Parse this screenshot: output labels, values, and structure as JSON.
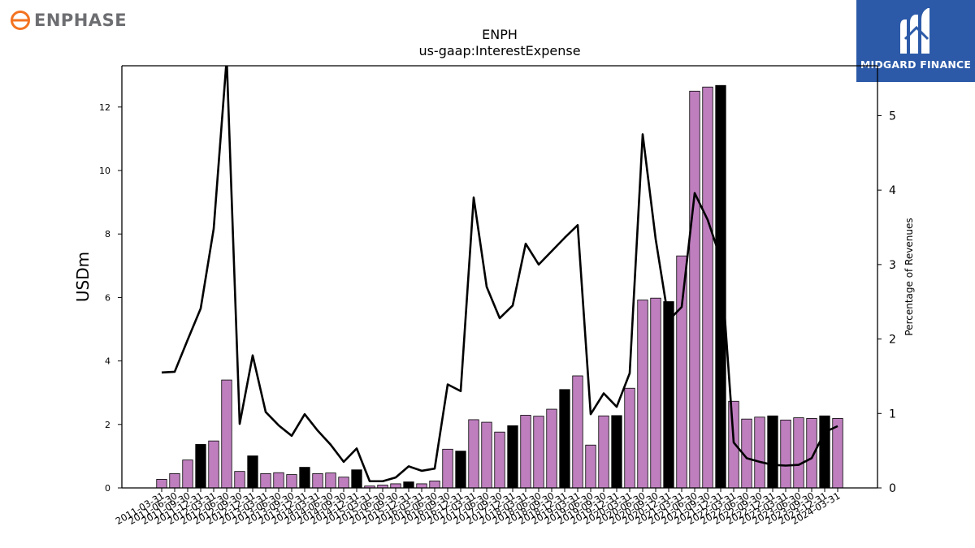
{
  "header": {
    "left_logo_text": "ENPHASE",
    "right_logo_text": "MIDGARD FINANCE"
  },
  "chart_data": {
    "type": "bar",
    "title": "ENPH",
    "subtitle": "us-gaap:InterestExpense",
    "ylabel": "USDm",
    "y2label": "Percentage of Revenues",
    "ylim": [
      0,
      13.3
    ],
    "y2lim": [
      0,
      5.67
    ],
    "yticks": [
      0,
      2,
      4,
      6,
      8,
      10,
      12
    ],
    "y2ticks": [
      0,
      1,
      2,
      3,
      4,
      5
    ],
    "grid": false,
    "colors": {
      "bar": "#bf7fbf",
      "bar_highlight": "#000000",
      "line": "#000000"
    },
    "categories": [
      "2011-03-31",
      "2011-06-30",
      "2011-09-30",
      "2011-12-31",
      "2012-03-31",
      "2012-06-30",
      "2012-09-30",
      "2012-12-31",
      "2013-03-31",
      "2013-06-30",
      "2013-09-30",
      "2013-12-31",
      "2014-03-31",
      "2014-06-30",
      "2014-09-30",
      "2014-12-31",
      "2015-03-31",
      "2015-06-30",
      "2015-09-30",
      "2015-12-31",
      "2016-03-31",
      "2016-06-30",
      "2016-09-30",
      "2016-12-31",
      "2017-03-31",
      "2017-06-30",
      "2017-09-30",
      "2017-12-31",
      "2018-03-31",
      "2018-06-30",
      "2018-09-30",
      "2018-12-31",
      "2019-03-31",
      "2019-06-30",
      "2019-09-30",
      "2019-12-31",
      "2020-03-31",
      "2020-06-30",
      "2020-09-30",
      "2020-12-31",
      "2021-03-31",
      "2021-06-30",
      "2021-09-30",
      "2021-12-31",
      "2022-03-31",
      "2022-06-30",
      "2022-09-30",
      "2022-12-31",
      "2023-03-31",
      "2023-06-30",
      "2023-09-30",
      "2023-12-31",
      "2024-03-31"
    ],
    "series": [
      {
        "kind": "bar",
        "values": [
          0.27,
          0.45,
          0.88,
          1.37,
          1.48,
          3.4,
          0.52,
          1.01,
          0.45,
          0.48,
          0.42,
          0.65,
          0.45,
          0.47,
          0.34,
          0.57,
          0.06,
          0.09,
          0.13,
          0.19,
          0.13,
          0.22,
          1.22,
          1.16,
          2.15,
          2.07,
          1.76,
          1.96,
          2.29,
          2.26,
          2.48,
          3.1,
          3.53,
          1.35,
          2.27,
          2.28,
          3.14,
          5.92,
          5.98,
          5.87,
          7.31,
          12.5,
          12.63,
          12.68,
          2.73,
          2.17,
          2.23,
          2.27,
          2.14,
          2.21,
          2.19,
          2.27,
          2.19
        ],
        "highlight": [
          false,
          false,
          false,
          true,
          false,
          false,
          false,
          true,
          false,
          false,
          false,
          true,
          false,
          false,
          false,
          true,
          false,
          false,
          false,
          true,
          false,
          false,
          false,
          true,
          false,
          false,
          false,
          true,
          false,
          false,
          false,
          true,
          false,
          false,
          false,
          true,
          false,
          false,
          false,
          true,
          false,
          false,
          false,
          true,
          false,
          false,
          false,
          true,
          false,
          false,
          false,
          true,
          false
        ]
      },
      {
        "kind": "line",
        "axis": "y2",
        "values": [
          1.55,
          1.56,
          1.99,
          2.41,
          3.48,
          5.77,
          0.86,
          1.78,
          1.02,
          0.84,
          0.7,
          0.99,
          0.77,
          0.58,
          0.35,
          0.53,
          0.09,
          0.09,
          0.14,
          0.29,
          0.23,
          0.26,
          1.39,
          1.3,
          3.9,
          2.7,
          2.28,
          2.45,
          3.28,
          3.0,
          3.18,
          3.36,
          3.53,
          0.99,
          1.27,
          1.09,
          1.54,
          4.75,
          3.34,
          2.25,
          2.43,
          3.96,
          3.6,
          3.08,
          0.61,
          0.4,
          0.35,
          0.31,
          0.3,
          0.31,
          0.4,
          0.75,
          0.83
        ]
      }
    ]
  }
}
